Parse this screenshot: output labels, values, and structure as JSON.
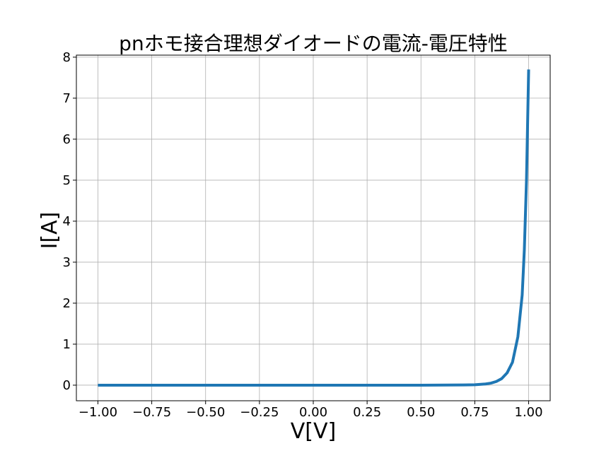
{
  "chart_data": {
    "type": "line",
    "title": "pnホモ接合理想ダイオードの電流-電圧特性",
    "xlabel": "V[V]",
    "ylabel": "I[A]",
    "xlim": [
      -1.1,
      1.1
    ],
    "ylim": [
      -0.38,
      8.05
    ],
    "grid": true,
    "x_ticks": [
      -1.0,
      -0.75,
      -0.5,
      -0.25,
      0.0,
      0.25,
      0.5,
      0.75,
      1.0
    ],
    "x_tick_labels": [
      "−1.00",
      "−0.75",
      "−0.50",
      "−0.25",
      "0.00",
      "0.25",
      "0.50",
      "0.75",
      "1.00"
    ],
    "y_ticks": [
      0,
      1,
      2,
      3,
      4,
      5,
      6,
      7,
      8
    ],
    "y_tick_labels": [
      "0",
      "1",
      "2",
      "3",
      "4",
      "5",
      "6",
      "7",
      "8"
    ],
    "series": [
      {
        "color": "#1f77b4",
        "x": [
          -1.0,
          -0.5,
          0.0,
          0.5,
          0.7,
          0.75,
          0.8,
          0.825,
          0.85,
          0.875,
          0.9,
          0.925,
          0.95,
          0.97,
          0.98,
          0.99,
          1.0
        ],
        "y": [
          0.0,
          0.0,
          0.0,
          0.0,
          0.005,
          0.01,
          0.03,
          0.05,
          0.09,
          0.16,
          0.3,
          0.56,
          1.18,
          2.2,
          3.3,
          5.0,
          7.7
        ]
      }
    ]
  }
}
